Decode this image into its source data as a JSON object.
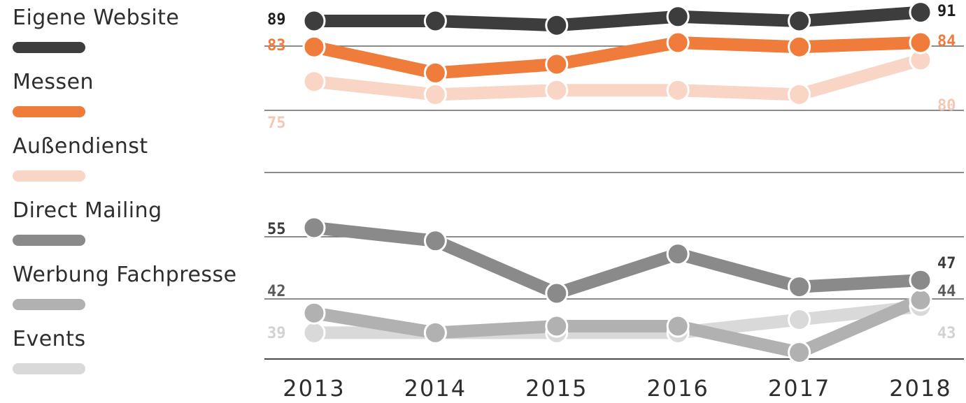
{
  "chart_data": {
    "type": "line",
    "categories": [
      "2013",
      "2014",
      "2015",
      "2016",
      "2017",
      "2018"
    ],
    "series": [
      {
        "name": "Eigene Website",
        "color": "#3d3d3d",
        "values": [
          89,
          89,
          88,
          90,
          89,
          91
        ],
        "start_label": "89",
        "end_label": "91"
      },
      {
        "name": "Messen",
        "color": "#f07c3c",
        "values": [
          83,
          77,
          79,
          84,
          83,
          84
        ],
        "start_label": "83",
        "end_label": "84"
      },
      {
        "name": "Außendienst",
        "color": "#f9d5c6",
        "values": [
          75,
          72,
          73,
          73,
          72,
          80
        ],
        "start_label": "75",
        "end_label": "80"
      },
      {
        "name": "Direct Mailing",
        "color": "#8a8a8a",
        "values": [
          55,
          53,
          45,
          51,
          46,
          47
        ],
        "start_label": "55",
        "end_label": "47"
      },
      {
        "name": "Werbung Fachpresse",
        "color": "#b1b1b1",
        "values": [
          42,
          39,
          40,
          40,
          36,
          44
        ],
        "start_label": "42",
        "end_label": "44"
      },
      {
        "name": "Events",
        "color": "#d9d9d9",
        "values": [
          39,
          39,
          39,
          39,
          41,
          43
        ],
        "start_label": "39",
        "end_label": "43"
      }
    ]
  }
}
